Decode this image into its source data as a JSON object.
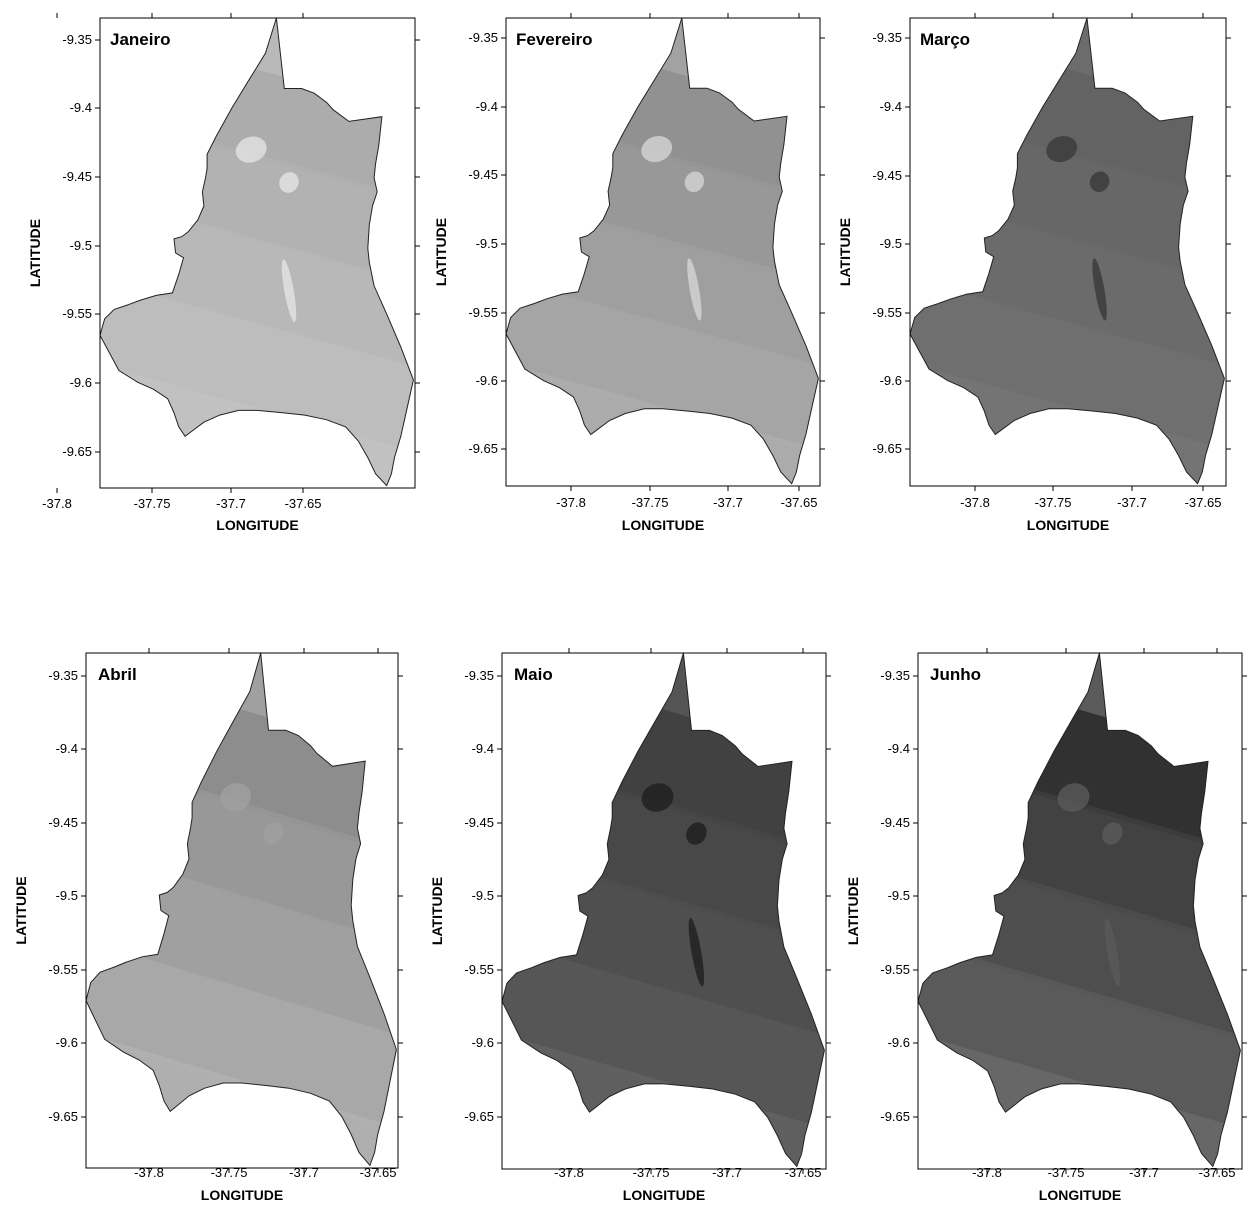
{
  "figure": {
    "x_label": "LONGITUDE",
    "y_label": "LATITUDE",
    "x_ticks": [
      "-37.8",
      "-37.75",
      "-37.7",
      "-37.65"
    ],
    "y_ticks": [
      "-9.35",
      "-9.4",
      "-9.45",
      "-9.5",
      "-9.55",
      "-9.6",
      "-9.65"
    ]
  },
  "chart_data": {
    "type": "heatmap",
    "x_range": [
      -37.85,
      -37.64
    ],
    "y_range": [
      -9.675,
      -9.335
    ],
    "panels": [
      {
        "title": "Janeiro",
        "base_color": "#b9b9b9",
        "band_colors": [
          "#a9a9a9",
          "#b0b0b0",
          "#b7b7b7",
          "#bdbdbd",
          "#c2c2c2"
        ],
        "spot_color": "#e4e4e4"
      },
      {
        "title": "Fevereiro",
        "base_color": "#a2a2a2",
        "band_colors": [
          "#8e8e8e",
          "#979797",
          "#9f9f9f",
          "#a6a6a6",
          "#adadad"
        ],
        "spot_color": "#d5d5d5"
      },
      {
        "title": "Março",
        "base_color": "#6c6c6c",
        "band_colors": [
          "#616161",
          "#666666",
          "#6b6b6b",
          "#707070",
          "#757575"
        ],
        "spot_color": "#3a3a3a"
      },
      {
        "title": "Abril",
        "base_color": "#a0a0a0",
        "band_colors": [
          "#8a8a8a",
          "#969696",
          "#a0a0a0",
          "#a9a9a9",
          "#b1b1b1"
        ],
        "spot_color": "#a0a0a0"
      },
      {
        "title": "Maio",
        "base_color": "#545454",
        "band_colors": [
          "#3e3e3e",
          "#474747",
          "#4f4f4f",
          "#575757",
          "#626262"
        ],
        "spot_color": "#1e1e1e"
      },
      {
        "title": "Junho",
        "base_color": "#5a5a5a",
        "band_colors": [
          "#2a2a2a",
          "#3e3e3e",
          "#4c4c4c",
          "#5a5a5a",
          "#6a6a6a"
        ],
        "spot_color": "#5a5a5a"
      }
    ]
  }
}
